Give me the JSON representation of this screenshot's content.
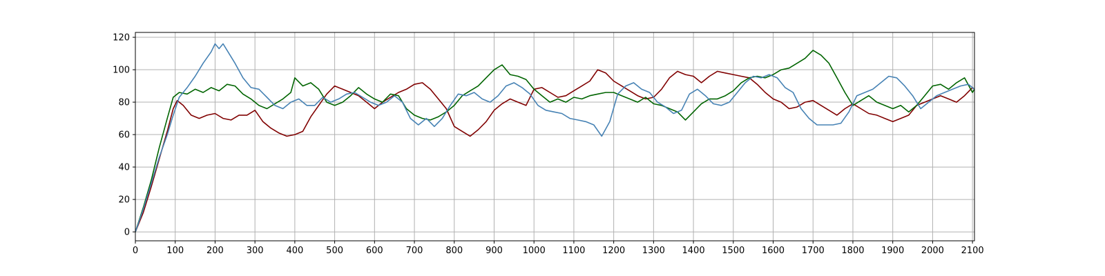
{
  "chart_data": {
    "type": "line",
    "title": "",
    "xlabel": "",
    "ylabel": "",
    "xlim": [
      0,
      2105
    ],
    "ylim": [
      -5.5,
      123
    ],
    "grid": true,
    "x_ticks": [
      0,
      100,
      200,
      300,
      400,
      500,
      600,
      700,
      800,
      900,
      1000,
      1100,
      1200,
      1300,
      1400,
      1500,
      1600,
      1700,
      1800,
      1900,
      2000,
      2100
    ],
    "y_ticks": [
      0,
      20,
      40,
      60,
      80,
      100,
      120
    ],
    "series": [
      {
        "color": "#800000",
        "points": [
          [
            0,
            0
          ],
          [
            20,
            12
          ],
          [
            40,
            28
          ],
          [
            60,
            45
          ],
          [
            80,
            62
          ],
          [
            95,
            76
          ],
          [
            105,
            81
          ],
          [
            120,
            78
          ],
          [
            140,
            72
          ],
          [
            160,
            70
          ],
          [
            180,
            72
          ],
          [
            200,
            73
          ],
          [
            220,
            70
          ],
          [
            240,
            69
          ],
          [
            260,
            72
          ],
          [
            280,
            72
          ],
          [
            300,
            75
          ],
          [
            320,
            68
          ],
          [
            340,
            64
          ],
          [
            360,
            61
          ],
          [
            380,
            59
          ],
          [
            400,
            60
          ],
          [
            420,
            62
          ],
          [
            440,
            71
          ],
          [
            460,
            78
          ],
          [
            480,
            85
          ],
          [
            500,
            90
          ],
          [
            520,
            88
          ],
          [
            540,
            86
          ],
          [
            560,
            84
          ],
          [
            580,
            80
          ],
          [
            600,
            76
          ],
          [
            620,
            80
          ],
          [
            640,
            83
          ],
          [
            660,
            86
          ],
          [
            680,
            88
          ],
          [
            700,
            91
          ],
          [
            720,
            92
          ],
          [
            740,
            88
          ],
          [
            760,
            82
          ],
          [
            780,
            76
          ],
          [
            800,
            65
          ],
          [
            820,
            62
          ],
          [
            840,
            59
          ],
          [
            860,
            63
          ],
          [
            880,
            68
          ],
          [
            900,
            75
          ],
          [
            920,
            79
          ],
          [
            940,
            82
          ],
          [
            960,
            80
          ],
          [
            980,
            78
          ],
          [
            1000,
            88
          ],
          [
            1020,
            89
          ],
          [
            1040,
            86
          ],
          [
            1060,
            83
          ],
          [
            1080,
            84
          ],
          [
            1100,
            87
          ],
          [
            1120,
            90
          ],
          [
            1140,
            93
          ],
          [
            1160,
            100
          ],
          [
            1180,
            98
          ],
          [
            1200,
            93
          ],
          [
            1220,
            90
          ],
          [
            1240,
            87
          ],
          [
            1260,
            84
          ],
          [
            1280,
            82
          ],
          [
            1300,
            83
          ],
          [
            1320,
            88
          ],
          [
            1340,
            95
          ],
          [
            1360,
            99
          ],
          [
            1380,
            97
          ],
          [
            1400,
            96
          ],
          [
            1420,
            92
          ],
          [
            1440,
            96
          ],
          [
            1460,
            99
          ],
          [
            1480,
            98
          ],
          [
            1500,
            97
          ],
          [
            1520,
            96
          ],
          [
            1540,
            95
          ],
          [
            1560,
            91
          ],
          [
            1580,
            86
          ],
          [
            1600,
            82
          ],
          [
            1620,
            80
          ],
          [
            1640,
            76
          ],
          [
            1660,
            77
          ],
          [
            1680,
            80
          ],
          [
            1700,
            81
          ],
          [
            1720,
            78
          ],
          [
            1740,
            75
          ],
          [
            1760,
            72
          ],
          [
            1780,
            76
          ],
          [
            1800,
            79
          ],
          [
            1820,
            76
          ],
          [
            1840,
            73
          ],
          [
            1860,
            72
          ],
          [
            1880,
            70
          ],
          [
            1900,
            68
          ],
          [
            1920,
            70
          ],
          [
            1940,
            72
          ],
          [
            1960,
            78
          ],
          [
            1980,
            80
          ],
          [
            2000,
            82
          ],
          [
            2020,
            84
          ],
          [
            2040,
            82
          ],
          [
            2060,
            80
          ],
          [
            2080,
            84
          ],
          [
            2100,
            89
          ],
          [
            2105,
            88
          ]
        ]
      },
      {
        "color": "#006400",
        "points": [
          [
            0,
            0
          ],
          [
            20,
            15
          ],
          [
            40,
            32
          ],
          [
            60,
            52
          ],
          [
            80,
            70
          ],
          [
            95,
            83
          ],
          [
            110,
            86
          ],
          [
            130,
            85
          ],
          [
            150,
            88
          ],
          [
            170,
            86
          ],
          [
            190,
            89
          ],
          [
            210,
            87
          ],
          [
            230,
            91
          ],
          [
            250,
            90
          ],
          [
            270,
            85
          ],
          [
            290,
            82
          ],
          [
            310,
            78
          ],
          [
            330,
            76
          ],
          [
            350,
            79
          ],
          [
            370,
            82
          ],
          [
            390,
            86
          ],
          [
            400,
            95
          ],
          [
            420,
            90
          ],
          [
            440,
            92
          ],
          [
            460,
            88
          ],
          [
            480,
            80
          ],
          [
            500,
            78
          ],
          [
            520,
            80
          ],
          [
            540,
            84
          ],
          [
            560,
            89
          ],
          [
            580,
            85
          ],
          [
            600,
            82
          ],
          [
            620,
            80
          ],
          [
            640,
            85
          ],
          [
            660,
            84
          ],
          [
            680,
            76
          ],
          [
            700,
            72
          ],
          [
            720,
            70
          ],
          [
            740,
            69
          ],
          [
            760,
            71
          ],
          [
            780,
            74
          ],
          [
            800,
            78
          ],
          [
            820,
            84
          ],
          [
            840,
            87
          ],
          [
            860,
            90
          ],
          [
            880,
            95
          ],
          [
            900,
            100
          ],
          [
            920,
            103
          ],
          [
            940,
            97
          ],
          [
            960,
            96
          ],
          [
            980,
            94
          ],
          [
            1000,
            88
          ],
          [
            1020,
            84
          ],
          [
            1040,
            80
          ],
          [
            1060,
            82
          ],
          [
            1080,
            80
          ],
          [
            1100,
            83
          ],
          [
            1120,
            82
          ],
          [
            1140,
            84
          ],
          [
            1160,
            85
          ],
          [
            1180,
            86
          ],
          [
            1200,
            86
          ],
          [
            1220,
            84
          ],
          [
            1240,
            82
          ],
          [
            1260,
            80
          ],
          [
            1280,
            83
          ],
          [
            1300,
            79
          ],
          [
            1320,
            78
          ],
          [
            1340,
            76
          ],
          [
            1360,
            74
          ],
          [
            1380,
            69
          ],
          [
            1400,
            74
          ],
          [
            1420,
            79
          ],
          [
            1440,
            82
          ],
          [
            1460,
            82
          ],
          [
            1480,
            84
          ],
          [
            1500,
            87
          ],
          [
            1520,
            92
          ],
          [
            1540,
            95
          ],
          [
            1560,
            96
          ],
          [
            1580,
            95
          ],
          [
            1600,
            97
          ],
          [
            1620,
            100
          ],
          [
            1640,
            101
          ],
          [
            1660,
            104
          ],
          [
            1680,
            107
          ],
          [
            1700,
            112
          ],
          [
            1720,
            109
          ],
          [
            1740,
            104
          ],
          [
            1760,
            95
          ],
          [
            1780,
            86
          ],
          [
            1800,
            78
          ],
          [
            1820,
            81
          ],
          [
            1840,
            84
          ],
          [
            1860,
            80
          ],
          [
            1880,
            78
          ],
          [
            1900,
            76
          ],
          [
            1920,
            78
          ],
          [
            1940,
            74
          ],
          [
            1960,
            78
          ],
          [
            1980,
            84
          ],
          [
            2000,
            90
          ],
          [
            2020,
            91
          ],
          [
            2040,
            88
          ],
          [
            2060,
            92
          ],
          [
            2080,
            95
          ],
          [
            2100,
            86
          ],
          [
            2105,
            88
          ]
        ]
      },
      {
        "color": "#4682b4",
        "points": [
          [
            0,
            0
          ],
          [
            20,
            14
          ],
          [
            40,
            30
          ],
          [
            60,
            46
          ],
          [
            80,
            60
          ],
          [
            95,
            72
          ],
          [
            110,
            83
          ],
          [
            130,
            89
          ],
          [
            150,
            96
          ],
          [
            170,
            104
          ],
          [
            190,
            111
          ],
          [
            200,
            116
          ],
          [
            210,
            113
          ],
          [
            220,
            116
          ],
          [
            230,
            112
          ],
          [
            250,
            104
          ],
          [
            270,
            95
          ],
          [
            290,
            89
          ],
          [
            310,
            88
          ],
          [
            330,
            83
          ],
          [
            350,
            78
          ],
          [
            370,
            76
          ],
          [
            390,
            80
          ],
          [
            410,
            82
          ],
          [
            430,
            78
          ],
          [
            450,
            78
          ],
          [
            470,
            83
          ],
          [
            490,
            80
          ],
          [
            510,
            82
          ],
          [
            530,
            85
          ],
          [
            550,
            86
          ],
          [
            570,
            83
          ],
          [
            590,
            80
          ],
          [
            610,
            78
          ],
          [
            630,
            80
          ],
          [
            650,
            84
          ],
          [
            670,
            80
          ],
          [
            690,
            70
          ],
          [
            710,
            66
          ],
          [
            730,
            70
          ],
          [
            750,
            65
          ],
          [
            770,
            70
          ],
          [
            790,
            78
          ],
          [
            810,
            85
          ],
          [
            830,
            84
          ],
          [
            850,
            86
          ],
          [
            870,
            82
          ],
          [
            890,
            80
          ],
          [
            910,
            84
          ],
          [
            930,
            90
          ],
          [
            950,
            92
          ],
          [
            970,
            89
          ],
          [
            990,
            85
          ],
          [
            1010,
            78
          ],
          [
            1030,
            75
          ],
          [
            1050,
            74
          ],
          [
            1070,
            73
          ],
          [
            1090,
            70
          ],
          [
            1110,
            69
          ],
          [
            1130,
            68
          ],
          [
            1150,
            66
          ],
          [
            1170,
            59
          ],
          [
            1190,
            68
          ],
          [
            1210,
            85
          ],
          [
            1230,
            90
          ],
          [
            1250,
            92
          ],
          [
            1270,
            88
          ],
          [
            1290,
            86
          ],
          [
            1310,
            80
          ],
          [
            1330,
            77
          ],
          [
            1350,
            73
          ],
          [
            1370,
            75
          ],
          [
            1390,
            85
          ],
          [
            1410,
            88
          ],
          [
            1430,
            84
          ],
          [
            1450,
            79
          ],
          [
            1470,
            78
          ],
          [
            1490,
            80
          ],
          [
            1510,
            86
          ],
          [
            1530,
            92
          ],
          [
            1550,
            96
          ],
          [
            1570,
            95
          ],
          [
            1590,
            97
          ],
          [
            1610,
            95
          ],
          [
            1630,
            89
          ],
          [
            1650,
            86
          ],
          [
            1670,
            76
          ],
          [
            1690,
            70
          ],
          [
            1710,
            66
          ],
          [
            1730,
            66
          ],
          [
            1750,
            66
          ],
          [
            1770,
            67
          ],
          [
            1790,
            74
          ],
          [
            1810,
            84
          ],
          [
            1830,
            86
          ],
          [
            1850,
            88
          ],
          [
            1870,
            92
          ],
          [
            1890,
            96
          ],
          [
            1910,
            95
          ],
          [
            1930,
            90
          ],
          [
            1950,
            84
          ],
          [
            1970,
            76
          ],
          [
            1990,
            80
          ],
          [
            2010,
            84
          ],
          [
            2030,
            86
          ],
          [
            2050,
            88
          ],
          [
            2070,
            90
          ],
          [
            2090,
            91
          ],
          [
            2105,
            88
          ]
        ]
      }
    ]
  }
}
